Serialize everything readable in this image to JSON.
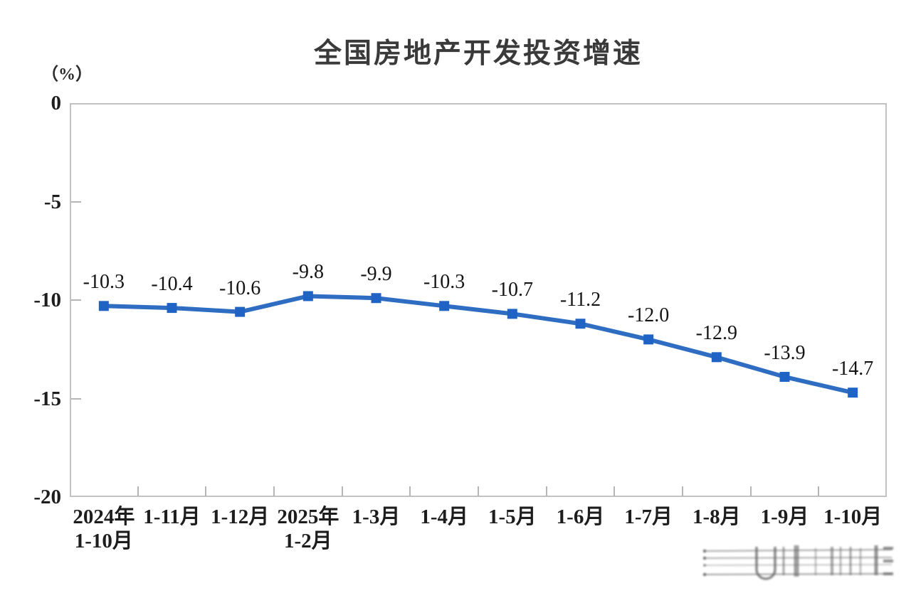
{
  "page": {
    "background_color": "#ffffff"
  },
  "chart_data": {
    "type": "line",
    "title": "全国房地产开发投资增速",
    "unit_label": "（%）",
    "categories": [
      "2024年\n1-10月",
      "1-11月",
      "1-12月",
      "2025年\n1-2月",
      "1-3月",
      "1-4月",
      "1-5月",
      "1-6月",
      "1-7月",
      "1-8月",
      "1-9月",
      "1-10月"
    ],
    "values": [
      -10.3,
      -10.4,
      -10.6,
      -9.8,
      -9.9,
      -10.3,
      -10.7,
      -11.2,
      -12.0,
      -12.9,
      -13.9,
      -14.7
    ],
    "data_labels": [
      "-10.3",
      "-10.4",
      "-10.6",
      "-9.8",
      "-9.9",
      "-10.3",
      "-10.7",
      "-11.2",
      "-12.0",
      "-12.9",
      "-13.9",
      "-14.7"
    ],
    "xlabel": "",
    "ylabel": "（%）",
    "ylim": [
      -20,
      0
    ],
    "y_ticks": [
      0,
      -5,
      -10,
      -15,
      -20
    ],
    "grid": false,
    "legend_position": "none",
    "line_color": "#2e6dc2",
    "marker_color": "#1f63c5",
    "marker_shape": "square",
    "axis_border_color": "#c2c2c2",
    "tick_color": "#b5b5b5",
    "label_text_color": "#1d1d1d",
    "title_color": "#3a3a3a"
  },
  "watermark": {
    "description": "blurred-gray-logo-smudge"
  }
}
